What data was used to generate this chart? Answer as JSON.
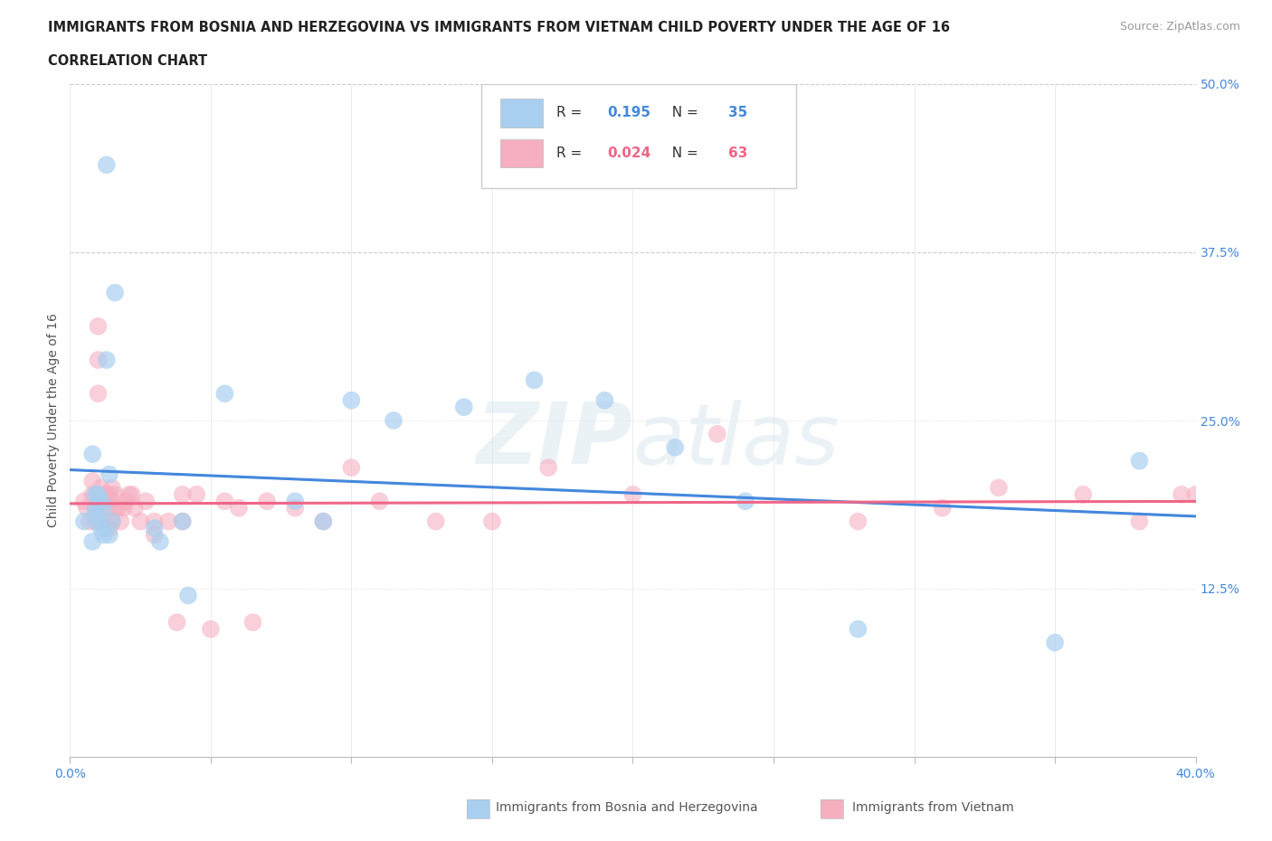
{
  "title_line1": "IMMIGRANTS FROM BOSNIA AND HERZEGOVINA VS IMMIGRANTS FROM VIETNAM CHILD POVERTY UNDER THE AGE OF 16",
  "title_line2": "CORRELATION CHART",
  "source_text": "Source: ZipAtlas.com",
  "ylabel": "Child Poverty Under the Age of 16",
  "xlim": [
    0.0,
    0.4
  ],
  "ylim": [
    0.0,
    0.5
  ],
  "ytick_positions": [
    0.125,
    0.25,
    0.375,
    0.5
  ],
  "ytick_labels": [
    "12.5%",
    "25.0%",
    "37.5%",
    "50.0%"
  ],
  "bosnia_color": "#a8cff0",
  "vietnam_color": "#f5afc0",
  "bosnia_line_color": "#4488dd",
  "vietnam_line_color": "#ee6688",
  "bosnia_R": 0.195,
  "bosnia_N": 35,
  "vietnam_R": 0.024,
  "vietnam_N": 63,
  "legend_bosnia": "Immigrants from Bosnia and Herzegovina",
  "legend_vietnam": "Immigrants from Vietnam",
  "background_color": "#ffffff",
  "grid_color": "#e0e0e0",
  "bosnia_x": [
    0.005,
    0.013,
    0.016,
    0.008,
    0.009,
    0.011,
    0.012,
    0.014,
    0.009,
    0.01,
    0.011,
    0.012,
    0.008,
    0.01,
    0.009,
    0.013,
    0.015,
    0.014,
    0.03,
    0.032,
    0.04,
    0.042,
    0.055,
    0.08,
    0.09,
    0.1,
    0.115,
    0.14,
    0.165,
    0.19,
    0.215,
    0.24,
    0.28,
    0.35,
    0.38
  ],
  "bosnia_y": [
    0.175,
    0.44,
    0.345,
    0.225,
    0.195,
    0.19,
    0.185,
    0.21,
    0.18,
    0.175,
    0.17,
    0.165,
    0.16,
    0.195,
    0.185,
    0.295,
    0.175,
    0.165,
    0.17,
    0.16,
    0.175,
    0.12,
    0.27,
    0.19,
    0.175,
    0.265,
    0.25,
    0.26,
    0.28,
    0.265,
    0.23,
    0.19,
    0.095,
    0.085,
    0.22
  ],
  "vietnam_x": [
    0.005,
    0.006,
    0.007,
    0.008,
    0.008,
    0.009,
    0.009,
    0.01,
    0.01,
    0.01,
    0.01,
    0.01,
    0.011,
    0.011,
    0.012,
    0.012,
    0.013,
    0.013,
    0.014,
    0.014,
    0.014,
    0.015,
    0.015,
    0.015,
    0.016,
    0.016,
    0.017,
    0.018,
    0.019,
    0.02,
    0.021,
    0.022,
    0.023,
    0.025,
    0.027,
    0.03,
    0.03,
    0.035,
    0.038,
    0.04,
    0.04,
    0.045,
    0.05,
    0.055,
    0.06,
    0.065,
    0.07,
    0.08,
    0.09,
    0.1,
    0.11,
    0.13,
    0.15,
    0.17,
    0.2,
    0.23,
    0.28,
    0.31,
    0.33,
    0.36,
    0.38,
    0.395,
    0.4
  ],
  "vietnam_y": [
    0.19,
    0.185,
    0.175,
    0.205,
    0.195,
    0.185,
    0.175,
    0.32,
    0.295,
    0.27,
    0.195,
    0.175,
    0.2,
    0.185,
    0.195,
    0.175,
    0.195,
    0.17,
    0.195,
    0.185,
    0.17,
    0.2,
    0.19,
    0.175,
    0.195,
    0.185,
    0.185,
    0.175,
    0.185,
    0.19,
    0.195,
    0.195,
    0.185,
    0.175,
    0.19,
    0.175,
    0.165,
    0.175,
    0.1,
    0.195,
    0.175,
    0.195,
    0.095,
    0.19,
    0.185,
    0.1,
    0.19,
    0.185,
    0.175,
    0.215,
    0.19,
    0.175,
    0.175,
    0.215,
    0.195,
    0.24,
    0.175,
    0.185,
    0.2,
    0.195,
    0.175,
    0.195,
    0.195
  ]
}
